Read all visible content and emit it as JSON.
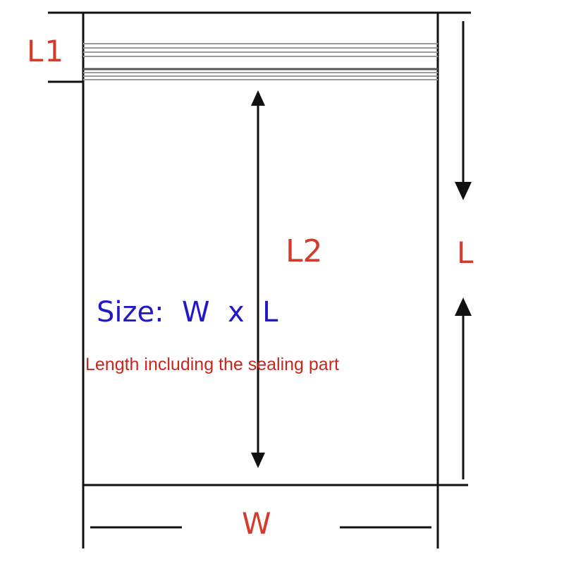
{
  "labels": {
    "l1": "L1",
    "l2": "L2",
    "l": "L",
    "w": "W",
    "size": "Size:  W  x  L",
    "note": "Length including the sealing part"
  },
  "colors": {
    "line": "#111111",
    "label_red": "#d23b2e",
    "label_blue": "#2218c9",
    "seal_lines": "#9a9a9a"
  }
}
